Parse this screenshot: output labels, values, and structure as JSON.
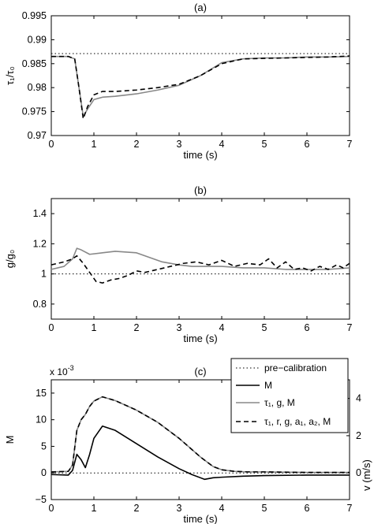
{
  "chart_data": [
    {
      "type": "line",
      "title": "(a)",
      "xlabel": "time (s)",
      "ylabel": "τ₁/τ₀",
      "xlim": [
        0,
        7
      ],
      "ylim": [
        0.97,
        0.995
      ],
      "xticks": [
        0,
        1,
        2,
        3,
        4,
        5,
        6,
        7
      ],
      "yticks": [
        0.97,
        0.975,
        0.98,
        0.985,
        0.99,
        0.995
      ],
      "xtick_labels": [
        "0",
        "1",
        "2",
        "3",
        "4",
        "5",
        "6",
        "7"
      ],
      "ytick_labels": [
        "0.97",
        "0.975",
        "0.98",
        "0.985",
        "0.99",
        "0.995"
      ],
      "series": [
        {
          "style": "dotted",
          "color": "#000000",
          "x": [
            0,
            7
          ],
          "y": [
            0.9871,
            0.9871
          ]
        },
        {
          "style": "solid",
          "color": "#888888",
          "x": [
            0,
            0.4,
            0.55,
            0.65,
            0.75,
            0.85,
            1.0,
            1.2,
            1.5,
            2.0,
            2.5,
            3.0,
            3.5,
            4.0,
            4.5,
            5.0,
            5.5,
            6.0,
            6.5,
            7.0
          ],
          "y": [
            0.9865,
            0.9865,
            0.986,
            0.98,
            0.974,
            0.9755,
            0.9775,
            0.978,
            0.9782,
            0.9787,
            0.9795,
            0.9805,
            0.9825,
            0.9852,
            0.986,
            0.9862,
            0.9862,
            0.9864,
            0.9864,
            0.9865
          ]
        },
        {
          "style": "dashed",
          "color": "#000000",
          "x": [
            0,
            0.4,
            0.55,
            0.65,
            0.75,
            0.85,
            1.0,
            1.2,
            1.5,
            2.0,
            2.5,
            3.0,
            3.5,
            4.0,
            4.5,
            5.0,
            5.5,
            6.0,
            6.5,
            7.0
          ],
          "y": [
            0.9865,
            0.9865,
            0.986,
            0.98,
            0.9735,
            0.976,
            0.9785,
            0.9792,
            0.9792,
            0.9795,
            0.98,
            0.9807,
            0.9825,
            0.985,
            0.986,
            0.9861,
            0.9862,
            0.9863,
            0.9864,
            0.9866
          ]
        }
      ]
    },
    {
      "type": "line",
      "title": "(b)",
      "xlabel": "time (s)",
      "ylabel": "g/g₀",
      "xlim": [
        0,
        7
      ],
      "ylim": [
        0.7,
        1.5
      ],
      "xticks": [
        0,
        1,
        2,
        3,
        4,
        5,
        6,
        7
      ],
      "yticks": [
        0.8,
        1.0,
        1.2,
        1.4
      ],
      "xtick_labels": [
        "0",
        "1",
        "2",
        "3",
        "4",
        "5",
        "6",
        "7"
      ],
      "ytick_labels": [
        "0.8",
        "1",
        "1.2",
        "1.4"
      ],
      "series": [
        {
          "style": "dotted",
          "color": "#000000",
          "x": [
            0,
            7
          ],
          "y": [
            1.0,
            1.0
          ]
        },
        {
          "style": "solid",
          "color": "#888888",
          "x": [
            0,
            0.3,
            0.5,
            0.6,
            0.7,
            0.9,
            1.2,
            1.5,
            2.0,
            2.3,
            2.6,
            3.0,
            3.3,
            3.6,
            4.0,
            4.5,
            5.0,
            5.5,
            6.0,
            6.5,
            7.0
          ],
          "y": [
            1.03,
            1.05,
            1.1,
            1.17,
            1.16,
            1.13,
            1.14,
            1.15,
            1.14,
            1.11,
            1.08,
            1.06,
            1.05,
            1.05,
            1.05,
            1.04,
            1.04,
            1.03,
            1.03,
            1.03,
            1.04
          ]
        },
        {
          "style": "dashed",
          "color": "#000000",
          "x": [
            0,
            0.3,
            0.5,
            0.6,
            0.75,
            0.9,
            1.05,
            1.2,
            1.4,
            1.6,
            1.8,
            2.0,
            2.2,
            2.5,
            2.8,
            3.1,
            3.4,
            3.7,
            4.0,
            4.3,
            4.6,
            4.9,
            5.1,
            5.3,
            5.5,
            5.7,
            5.9,
            6.1,
            6.3,
            6.5,
            6.7,
            6.85,
            7.0
          ],
          "y": [
            1.06,
            1.08,
            1.1,
            1.12,
            1.07,
            1.01,
            0.95,
            0.94,
            0.96,
            0.97,
            0.99,
            1.02,
            1.01,
            1.03,
            1.05,
            1.07,
            1.08,
            1.06,
            1.09,
            1.05,
            1.07,
            1.06,
            1.1,
            1.04,
            1.08,
            1.03,
            1.04,
            1.02,
            1.05,
            1.03,
            1.06,
            1.04,
            1.07
          ]
        }
      ]
    },
    {
      "type": "line",
      "title": "(c)",
      "xlabel": "time (s)",
      "ylabel": "M",
      "ylabel_right": "v (m/s)",
      "exponent_label": "x 10",
      "exponent_power": "-3",
      "xlim": [
        0,
        7
      ],
      "ylim": [
        -5,
        17.5
      ],
      "xticks": [
        0,
        1,
        2,
        3,
        4,
        5,
        6,
        7
      ],
      "yticks": [
        -5,
        0,
        5,
        10,
        15
      ],
      "xtick_labels": [
        "0",
        "1",
        "2",
        "3",
        "4",
        "5",
        "6",
        "7"
      ],
      "ytick_labels": [
        "−5",
        "0",
        "5",
        "10",
        "15"
      ],
      "yticks_right": [
        0,
        2,
        4
      ],
      "yticks_right_labels": [
        "0",
        "2",
        "4"
      ],
      "legend_position": "top-right",
      "legend": [
        {
          "label": "pre−calibration",
          "style": "dotted"
        },
        {
          "label": "M",
          "style": "solid-black"
        },
        {
          "label": "τ₁, g, M",
          "style": "solid-gray"
        },
        {
          "label": "τ₁, r, g, a₁, a₂, M",
          "style": "dashed"
        }
      ],
      "series": [
        {
          "style": "dotted",
          "color": "#000000",
          "x": [
            0,
            7
          ],
          "y": [
            0,
            0
          ]
        },
        {
          "style": "solid",
          "color": "#000000",
          "x": [
            0,
            0.4,
            0.5,
            0.6,
            0.7,
            0.8,
            0.9,
            1.0,
            1.2,
            1.5,
            2.0,
            2.5,
            3.0,
            3.3,
            3.6,
            3.8,
            4.0,
            4.5,
            5.0,
            6.0,
            7.0
          ],
          "y": [
            -0.3,
            -0.4,
            0.5,
            3.5,
            2.5,
            1.0,
            3.5,
            6.5,
            8.8,
            8.0,
            5.5,
            3.0,
            0.8,
            -0.3,
            -1.2,
            -0.9,
            -0.8,
            -0.6,
            -0.5,
            -0.4,
            -0.4
          ]
        },
        {
          "style": "solid",
          "color": "#888888",
          "x": [
            0,
            0.4,
            0.5,
            0.6,
            0.7,
            0.8,
            0.9,
            1.0,
            1.2,
            1.5,
            2.0,
            2.5,
            3.0,
            3.5,
            3.8,
            4.0,
            4.3,
            4.6,
            5.0,
            6.0,
            7.0
          ],
          "y": [
            0.2,
            0.3,
            1.5,
            8.0,
            10.0,
            11.0,
            12.5,
            13.5,
            14.3,
            13.6,
            11.8,
            9.5,
            6.5,
            3.0,
            1.2,
            0.6,
            0.3,
            0.2,
            0.2,
            0.1,
            0.1
          ]
        },
        {
          "style": "dashed",
          "color": "#000000",
          "x": [
            0,
            0.4,
            0.5,
            0.6,
            0.7,
            0.8,
            0.9,
            1.0,
            1.2,
            1.5,
            2.0,
            2.5,
            3.0,
            3.5,
            3.8,
            4.0,
            4.3,
            4.6,
            5.0,
            6.0,
            7.0
          ],
          "y": [
            0.2,
            0.3,
            1.5,
            8.0,
            10.0,
            11.0,
            12.5,
            13.5,
            14.3,
            13.6,
            11.8,
            9.5,
            6.5,
            3.0,
            1.2,
            0.6,
            0.3,
            0.2,
            0.2,
            0.1,
            0.1
          ]
        }
      ]
    }
  ]
}
